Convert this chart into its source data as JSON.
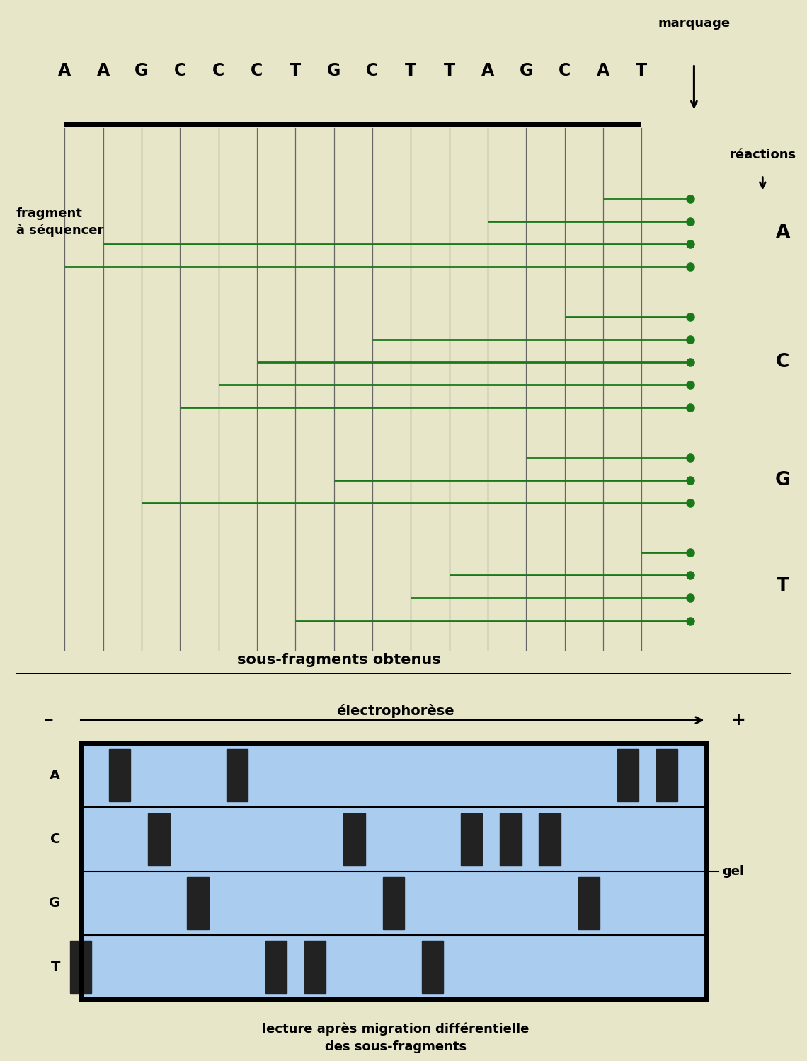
{
  "bg_color": "#E8E6C8",
  "sequence": [
    "A",
    "A",
    "G",
    "C",
    "C",
    "C",
    "T",
    "G",
    "C",
    "T",
    "T",
    "A",
    "G",
    "C",
    "A",
    "T"
  ],
  "label_fragment": "fragment\nà séquencer",
  "label_reactions": "réactions",
  "label_marquage": "marquage",
  "label_subfragments": "sous-fragments obtenus",
  "label_electrophorese": "électrophorèse",
  "label_gel": "gel",
  "label_lecture": "lecture après migration différentielle\ndes sous-fragments",
  "reaction_labels": [
    "A",
    "C",
    "G",
    "T"
  ],
  "green_color": "#1a7a1a",
  "line_color": "#666666",
  "gel_fill": "#AACCEE",
  "n_nucleotides": 16,
  "subfragments": {
    "A": [
      1,
      2,
      12,
      15
    ],
    "C": [
      4,
      5,
      6,
      9,
      14
    ],
    "G": [
      3,
      8,
      13
    ],
    "T": [
      7,
      10,
      11,
      16
    ]
  }
}
